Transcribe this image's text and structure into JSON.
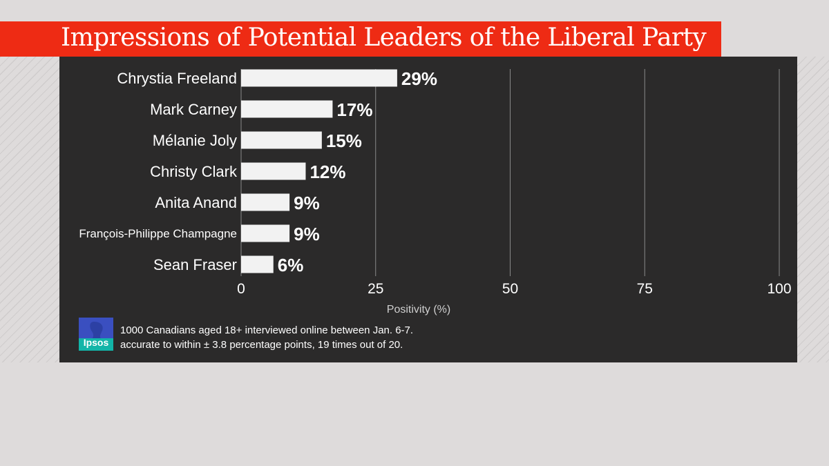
{
  "title": "Impressions of Potential Leaders of the Liberal Party",
  "chart_data": {
    "type": "bar",
    "orientation": "horizontal",
    "categories": [
      "Chrystia Freeland",
      "Mark Carney",
      "Mélanie Joly",
      "Christy Clark",
      "Anita Anand",
      "François-Philippe Champagne",
      "Sean Fraser"
    ],
    "values": [
      29,
      17,
      15,
      12,
      9,
      9,
      6
    ],
    "value_labels": [
      "29%",
      "17%",
      "15%",
      "12%",
      "9%",
      "9%",
      "6%"
    ],
    "xlabel": "Positivity (%)",
    "ylabel": "",
    "xlim": [
      0,
      100
    ],
    "xticks": [
      0,
      25,
      50,
      75,
      100
    ],
    "grid": true,
    "bar_color": "#f2f2f2"
  },
  "footnote": {
    "logo_text": "Ipsos",
    "lines": [
      "1000 Canadians aged 18+ interviewed online between Jan. 6-7.",
      "accurate to within ± 3.8 percentage points, 19 times out of 20."
    ]
  },
  "colors": {
    "title_bar": "#ee2b14",
    "panel": "#2b2a2a",
    "logo_blue": "#3a4fc0",
    "logo_teal": "#12b5a8"
  }
}
